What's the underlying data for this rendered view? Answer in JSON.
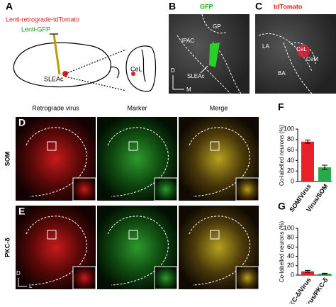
{
  "panel_a": {
    "label": "A",
    "tracer_red": "Lenti-retrograde-tdTomato",
    "tracer_green": "Lenti-GFP",
    "site": "SLEAc",
    "target": "CeL"
  },
  "panel_b": {
    "label": "B",
    "title": "GFP",
    "regions": [
      "GP",
      "IPAC",
      "SLEAc"
    ],
    "axes": [
      "D",
      "M"
    ]
  },
  "panel_c": {
    "label": "C",
    "title": "tdTomato",
    "regions": [
      "LA",
      "CeL",
      "CeM",
      "BA"
    ]
  },
  "panels_de": {
    "labels": [
      "D",
      "E"
    ],
    "columns": [
      "Retrograde virus",
      "Marker",
      "Merge"
    ],
    "rows": [
      "SOM",
      "PKC-δ"
    ],
    "axes": [
      "D",
      "L"
    ]
  },
  "chart_data": [
    {
      "type": "bar",
      "label": "F",
      "y_label": "Co-labelled neurons (%)",
      "categories": [
        "SOM/Virus",
        "Virus/SOM"
      ],
      "values": [
        76,
        27
      ],
      "errors": [
        3,
        4
      ],
      "colors": [
        "#e8202a",
        "#2aa84a"
      ],
      "ylim": [
        0,
        100
      ],
      "yticks": [
        0,
        20,
        40,
        60,
        80,
        100
      ]
    },
    {
      "type": "bar",
      "label": "G",
      "y_label": "Co-labelled neurons (%)",
      "categories": [
        "PKC-δ/Virus",
        "Virus/PKC-δ"
      ],
      "values": [
        8,
        3
      ],
      "errors": [
        2,
        1
      ],
      "colors": [
        "#e8202a",
        "#2aa84a"
      ],
      "ylim": [
        0,
        100
      ],
      "yticks": [
        0,
        20,
        40,
        60,
        80,
        100
      ]
    }
  ]
}
